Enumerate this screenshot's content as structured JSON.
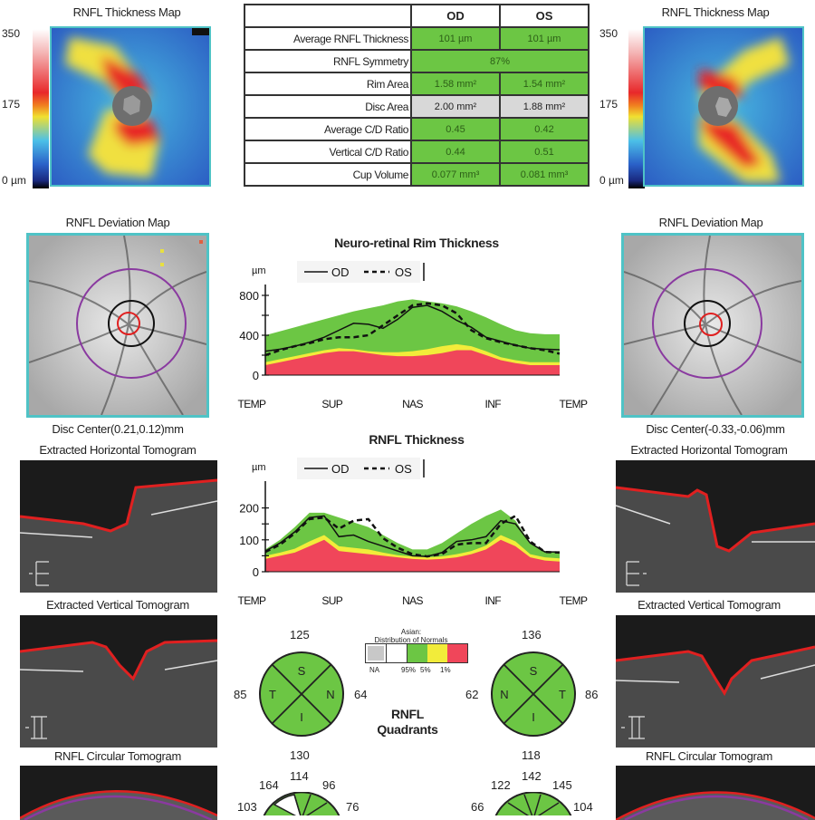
{
  "thickness_map": {
    "title": "RNFL Thickness Map",
    "scale": {
      "max": "350",
      "mid": "175",
      "min": "0 µm"
    }
  },
  "stats_table": {
    "headers": [
      "",
      "OD",
      "OS"
    ],
    "rows": [
      {
        "label": "Average RNFL Thickness",
        "od": "101 µm",
        "os": "101 µm",
        "status": "normal"
      },
      {
        "label": "RNFL Symmetry",
        "combined": "87%",
        "status": "normal"
      },
      {
        "label": "Rim Area",
        "od": "1.58 mm²",
        "os": "1.54 mm²",
        "status": "normal"
      },
      {
        "label": "Disc Area",
        "od": "2.00 mm²",
        "os": "1.88 mm²",
        "status": "na"
      },
      {
        "label": "Average C/D Ratio",
        "od": "0.45",
        "os": "0.42",
        "status": "normal"
      },
      {
        "label": "Vertical C/D Ratio",
        "od": "0.44",
        "os": "0.51",
        "status": "normal"
      },
      {
        "label": "Cup Volume",
        "od": "0.077 mm³",
        "os": "0.081 mm³",
        "status": "normal"
      }
    ]
  },
  "deviation_map": {
    "title": "RNFL Deviation Map",
    "od_disc_center": "Disc Center(0.21,0.12)mm",
    "os_disc_center": "Disc Center(-0.33,-0.06)mm"
  },
  "tomograms": {
    "horizontal": "Extracted Horizontal Tomogram",
    "vertical": "Extracted Vertical Tomogram",
    "circular": "RNFL Circular Tomogram"
  },
  "legend": {
    "title_line1": "Asian:",
    "title_line2": "Distribution of Normals",
    "labels": [
      "NA",
      "95%",
      "5%",
      "1%"
    ],
    "colors": {
      "na": "#c8c8c8",
      "white": "#ffffff",
      "green": "#6cc644",
      "yellow": "#f2ec3a",
      "red": "#f0465a"
    }
  },
  "quadrants": {
    "title_line1": "RNFL",
    "title_line2": "Quadrants",
    "od": {
      "S": "125",
      "I": "130",
      "T": "85",
      "N": "64"
    },
    "os": {
      "S": "136",
      "I": "118",
      "T": "86",
      "N": "62"
    }
  },
  "clock_hours": {
    "od": [
      "103",
      "164",
      "114",
      "96",
      "76"
    ],
    "os": [
      "66",
      "122",
      "142",
      "145",
      "104"
    ]
  },
  "chart_data": [
    {
      "type": "area",
      "title": "Neuro-retinal Rim Thickness",
      "ylabel": "µm",
      "xlabel": "",
      "x_tick_labels": [
        "TEMP",
        "SUP",
        "NAS",
        "INF",
        "TEMP"
      ],
      "y_ticks": [
        0,
        400,
        800
      ],
      "ylim": [
        0,
        800
      ],
      "legend": [
        {
          "name": "OD",
          "style": "solid"
        },
        {
          "name": "OS",
          "style": "dashed"
        }
      ],
      "x": [
        0,
        0.05,
        0.1,
        0.15,
        0.2,
        0.25,
        0.3,
        0.35,
        0.4,
        0.45,
        0.5,
        0.55,
        0.6,
        0.65,
        0.7,
        0.75,
        0.8,
        0.85,
        0.9,
        0.95,
        1.0
      ],
      "bands": {
        "red_1pct": [
          100,
          130,
          160,
          190,
          220,
          240,
          240,
          220,
          200,
          190,
          190,
          200,
          220,
          250,
          250,
          200,
          150,
          120,
          100,
          100,
          100
        ],
        "yellow_5pct": [
          130,
          160,
          190,
          220,
          250,
          270,
          260,
          240,
          230,
          230,
          240,
          260,
          290,
          310,
          290,
          240,
          180,
          150,
          130,
          130,
          130
        ],
        "green_95pct": [
          400,
          440,
          480,
          520,
          560,
          600,
          640,
          670,
          700,
          740,
          760,
          740,
          720,
          690,
          640,
          580,
          510,
          450,
          420,
          410,
          410
        ]
      },
      "series": [
        {
          "name": "OD",
          "values": [
            240,
            260,
            290,
            330,
            380,
            450,
            520,
            510,
            470,
            560,
            680,
            700,
            640,
            550,
            480,
            380,
            340,
            300,
            270,
            260,
            255
          ]
        },
        {
          "name": "OS",
          "values": [
            200,
            250,
            290,
            320,
            360,
            380,
            380,
            400,
            500,
            600,
            700,
            720,
            700,
            620,
            450,
            370,
            330,
            300,
            270,
            250,
            215
          ]
        }
      ]
    },
    {
      "type": "area",
      "title": "RNFL Thickness",
      "ylabel": "µm",
      "xlabel": "",
      "x_tick_labels": [
        "TEMP",
        "SUP",
        "NAS",
        "INF",
        "TEMP"
      ],
      "y_ticks": [
        0,
        100,
        200
      ],
      "ylim": [
        0,
        250
      ],
      "legend": [
        {
          "name": "OD",
          "style": "solid"
        },
        {
          "name": "OS",
          "style": "dashed"
        }
      ],
      "x": [
        0,
        0.05,
        0.1,
        0.15,
        0.2,
        0.25,
        0.3,
        0.35,
        0.4,
        0.45,
        0.5,
        0.55,
        0.6,
        0.65,
        0.7,
        0.75,
        0.8,
        0.85,
        0.9,
        0.95,
        1.0
      ],
      "bands": {
        "red_1pct": [
          40,
          50,
          60,
          80,
          100,
          65,
          60,
          55,
          50,
          45,
          40,
          38,
          40,
          45,
          55,
          70,
          100,
          80,
          45,
          35,
          32
        ],
        "yellow_5pct": [
          50,
          60,
          72,
          95,
          115,
          80,
          75,
          70,
          60,
          52,
          48,
          45,
          48,
          55,
          65,
          82,
          115,
          95,
          55,
          45,
          42
        ],
        "green_95pct": [
          70,
          100,
          140,
          185,
          185,
          170,
          155,
          140,
          115,
          90,
          70,
          70,
          90,
          120,
          150,
          175,
          195,
          160,
          90,
          65,
          62
        ]
      },
      "series": [
        {
          "name": "OD",
          "values": [
            65,
            90,
            125,
            170,
            175,
            110,
            115,
            95,
            80,
            65,
            50,
            48,
            60,
            95,
            100,
            110,
            160,
            150,
            90,
            62,
            62
          ]
        },
        {
          "name": "OS",
          "values": [
            62,
            85,
            120,
            165,
            170,
            135,
            160,
            165,
            105,
            75,
            55,
            48,
            55,
            85,
            90,
            90,
            150,
            175,
            95,
            62,
            60
          ]
        }
      ]
    }
  ]
}
